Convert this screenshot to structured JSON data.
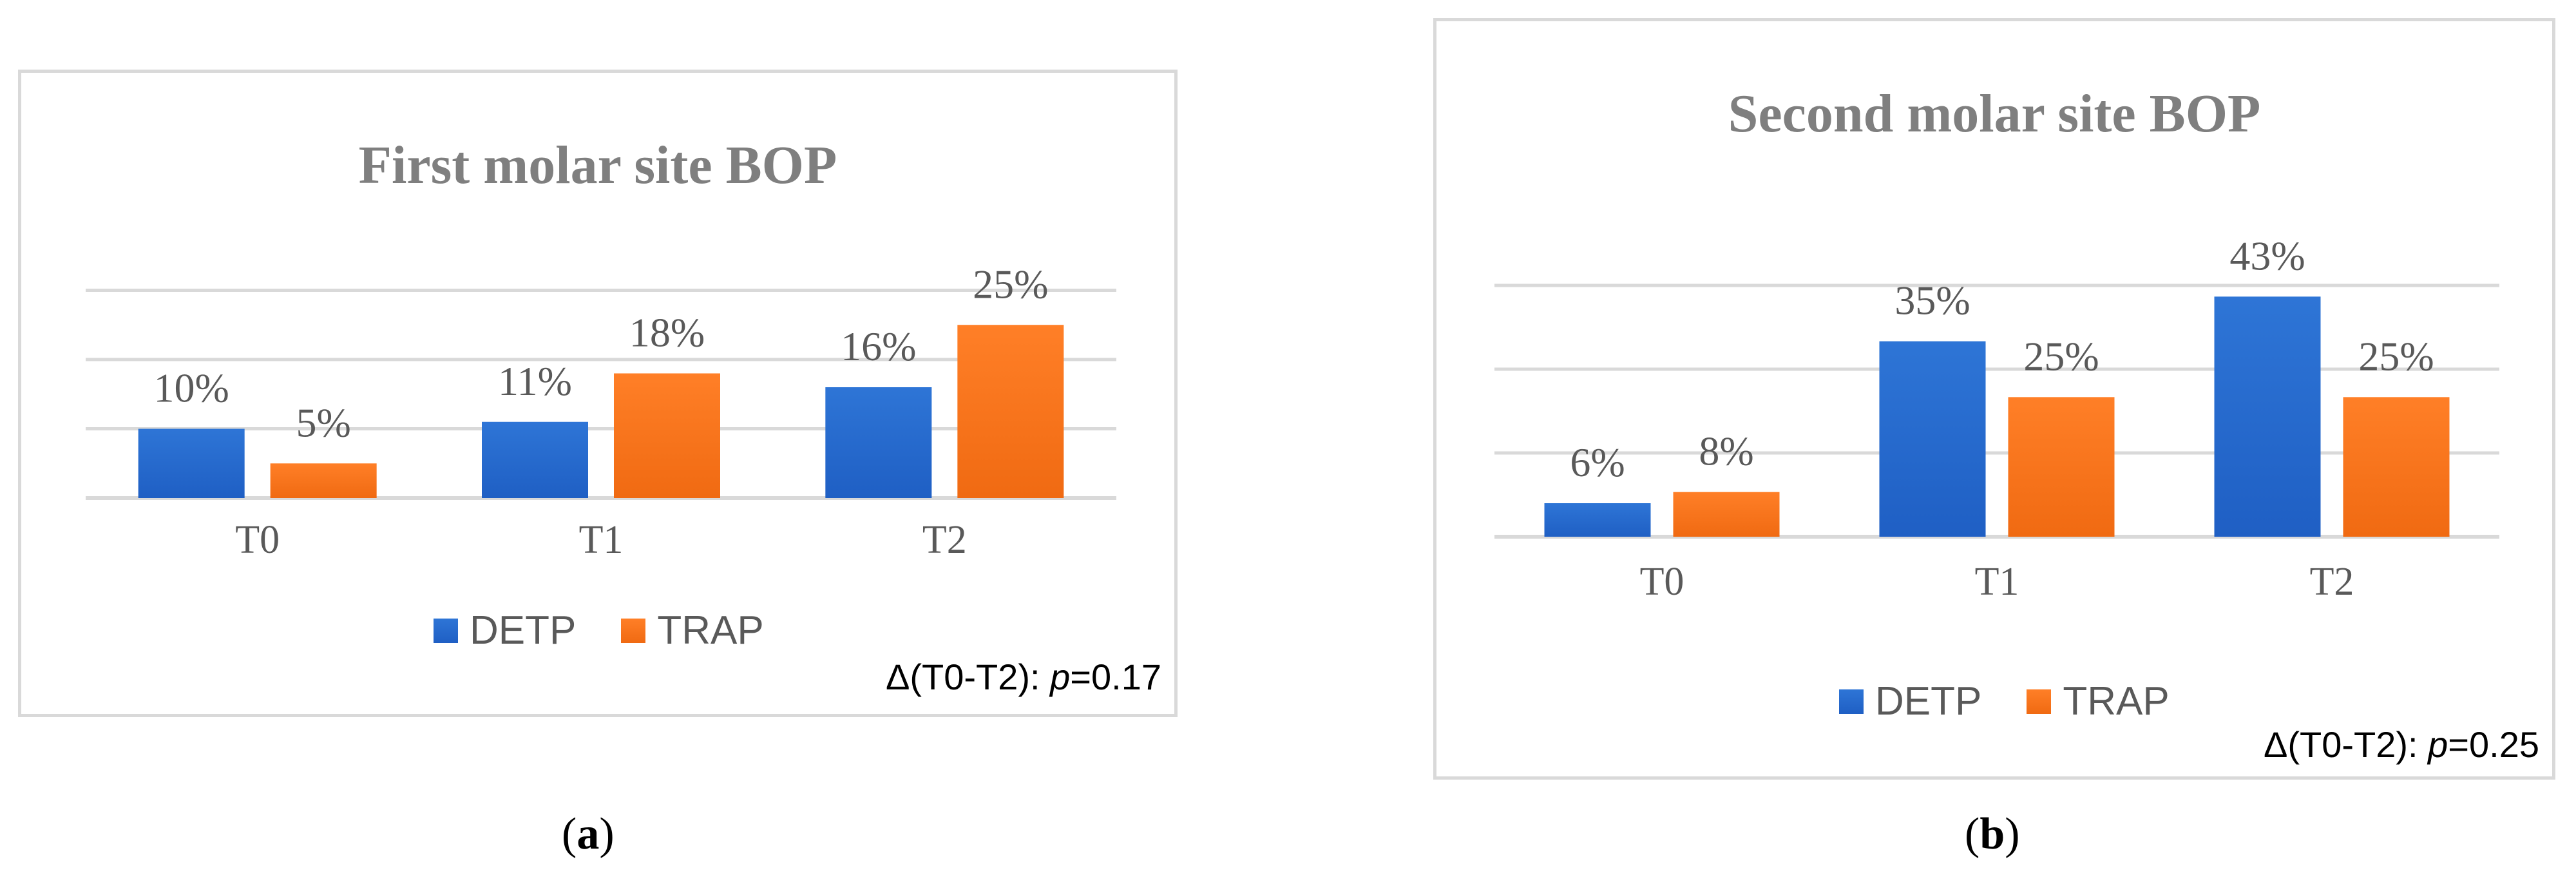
{
  "colors": {
    "detp": "#2e75d6",
    "detp_dark": "#1f5fc4",
    "trap": "#ff7f27",
    "trap_dark": "#f06a12",
    "grid": "#d9d9d9",
    "text": "#595959"
  },
  "chart_data": [
    {
      "id": "a",
      "type": "bar",
      "title": "First molar site BOP",
      "categories": [
        "T0",
        "T1",
        "T2"
      ],
      "series": [
        {
          "name": "DETP",
          "values": [
            10,
            11,
            16
          ],
          "labels": [
            "10%",
            "11%",
            "16%"
          ]
        },
        {
          "name": "TRAP",
          "values": [
            5,
            18,
            25
          ],
          "labels": [
            "5%",
            "18%",
            "25%"
          ]
        }
      ],
      "ylim": [
        0,
        40
      ],
      "grid": true,
      "legend": "bottom",
      "annotation": {
        "prefix": "Δ(T0-T2): ",
        "p": "p",
        "value": "=0.17"
      },
      "caption": {
        "open": "(",
        "letter": "a",
        "close": ")"
      }
    },
    {
      "id": "b",
      "type": "bar",
      "title": "Second molar site BOP",
      "categories": [
        "T0",
        "T1",
        "T2"
      ],
      "series": [
        {
          "name": "DETP",
          "values": [
            6,
            35,
            43
          ],
          "labels": [
            "6%",
            "35%",
            "43%"
          ]
        },
        {
          "name": "TRAP",
          "values": [
            8,
            25,
            25
          ],
          "labels": [
            "8%",
            "25%",
            "25%"
          ]
        }
      ],
      "ylim": [
        0,
        60
      ],
      "grid": true,
      "legend": "bottom",
      "annotation": {
        "prefix": "Δ(T0-T2): ",
        "p": "p",
        "value": "=0.25"
      },
      "caption": {
        "open": "(",
        "letter": "b",
        "close": ")"
      }
    }
  ]
}
